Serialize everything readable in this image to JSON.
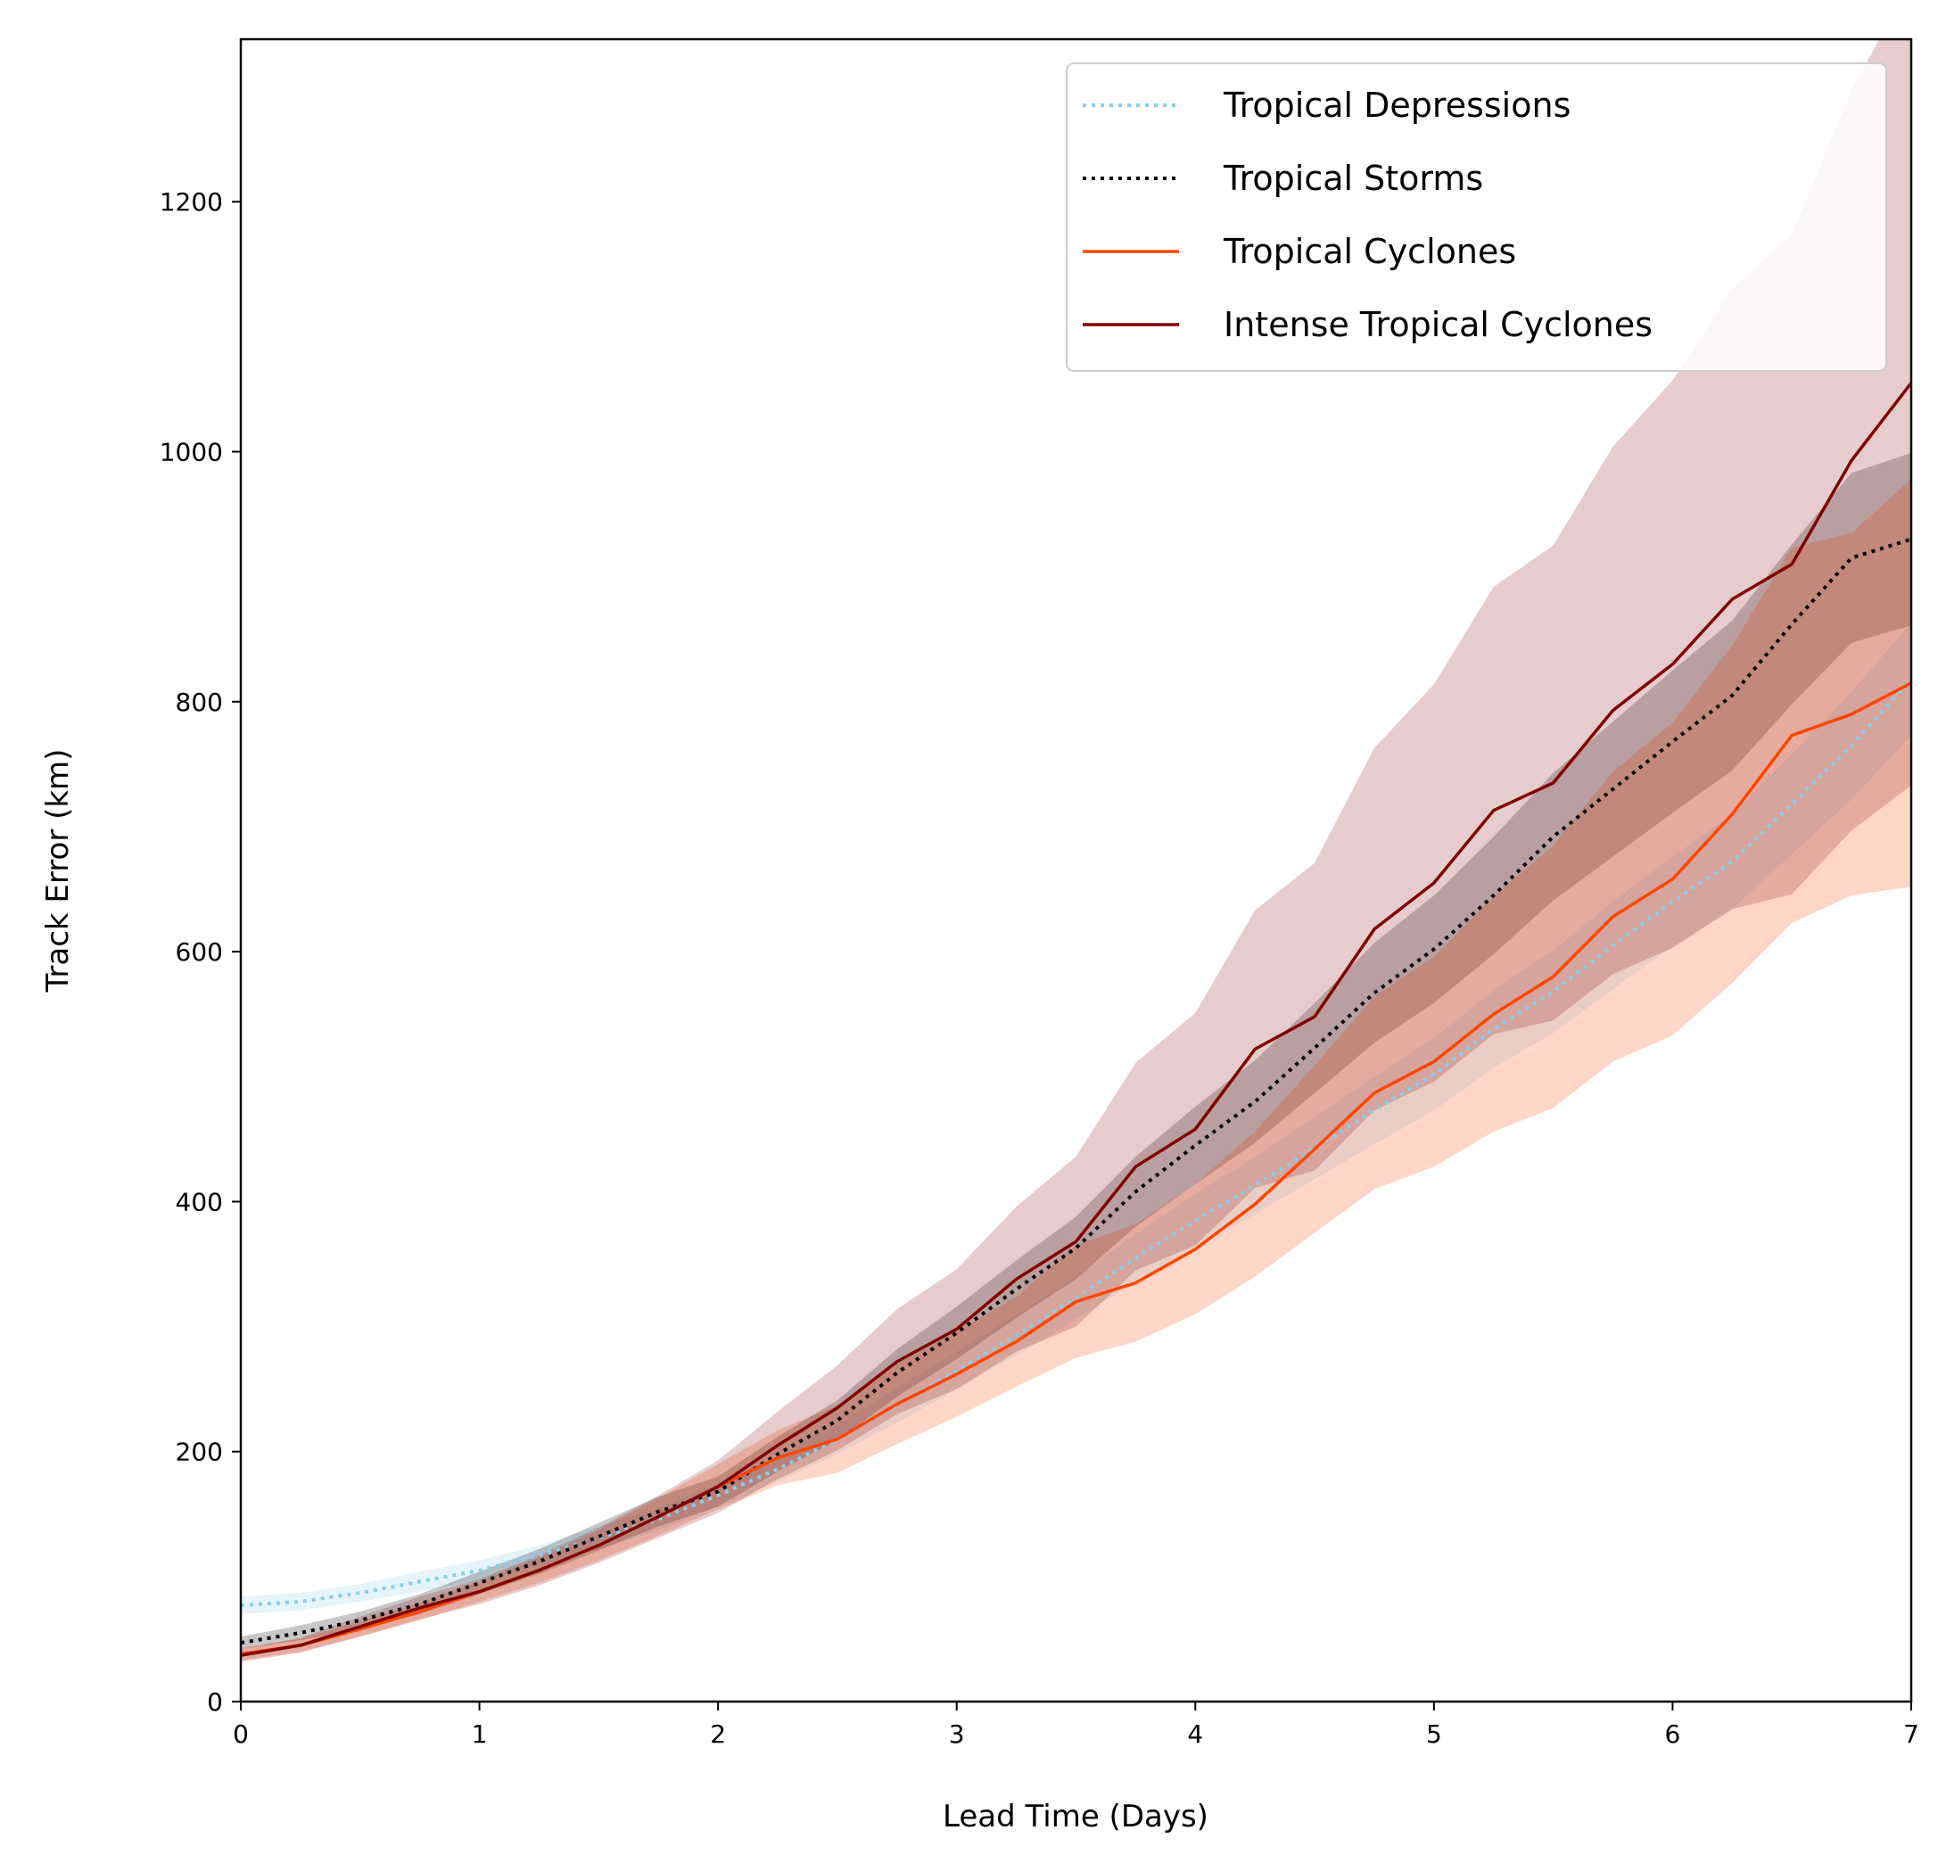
{
  "chart_data": {
    "type": "line",
    "title": "",
    "xlabel": "Lead Time (Days)",
    "ylabel": "Track Error (km)",
    "xlim": [
      0,
      7
    ],
    "ylim": [
      0,
      1330
    ],
    "xticks": [
      0,
      1,
      2,
      3,
      4,
      5,
      6,
      7
    ],
    "yticks": [
      0,
      200,
      400,
      600,
      800,
      1000,
      1200
    ],
    "grid": false,
    "legend_position": "top-right",
    "x": [
      0,
      0.25,
      0.5,
      0.75,
      1,
      1.25,
      1.5,
      1.75,
      2,
      2.25,
      2.5,
      2.75,
      3,
      3.25,
      3.5,
      3.75,
      4,
      4.25,
      4.5,
      4.75,
      5,
      5.25,
      5.5,
      5.75,
      6,
      6.25,
      6.5,
      6.75,
      7
    ],
    "series": [
      {
        "name": "Tropical Depressions",
        "color": "#87ceeb",
        "line_style": "dotted",
        "values": [
          77,
          80,
          87,
          96,
          105,
          117,
          131,
          146,
          165,
          186,
          210,
          237,
          265,
          293,
          323,
          355,
          385,
          413,
          443,
          473,
          502,
          538,
          568,
          605,
          640,
          672,
          718,
          765,
          818
        ],
        "lower": [
          70,
          73,
          80,
          88,
          97,
          109,
          122,
          137,
          156,
          176,
          198,
          223,
          250,
          277,
          306,
          336,
          364,
          390,
          418,
          446,
          473,
          507,
          535,
          570,
          604,
          634,
          678,
          722,
          773
        ],
        "upper": [
          84,
          87,
          94,
          104,
          113,
          125,
          140,
          155,
          174,
          196,
          222,
          251,
          280,
          309,
          340,
          374,
          406,
          436,
          468,
          500,
          531,
          569,
          601,
          640,
          676,
          710,
          758,
          808,
          863
        ]
      },
      {
        "name": "Tropical Storms",
        "color": "#000000",
        "line_style": "dotted",
        "values": [
          47,
          55,
          65,
          78,
          95,
          112,
          132,
          152,
          168,
          198,
          225,
          263,
          295,
          330,
          363,
          408,
          445,
          480,
          523,
          567,
          602,
          645,
          692,
          730,
          768,
          805,
          862,
          915,
          930
        ],
        "lower": [
          42,
          49,
          58,
          70,
          86,
          102,
          121,
          140,
          156,
          184,
          209,
          244,
          274,
          307,
          338,
          380,
          414,
          447,
          487,
          527,
          559,
          598,
          641,
          676,
          711,
          745,
          798,
          847,
          861
        ],
        "upper": [
          52,
          61,
          72,
          86,
          104,
          122,
          143,
          164,
          180,
          212,
          241,
          282,
          316,
          353,
          388,
          436,
          476,
          513,
          559,
          607,
          645,
          692,
          743,
          784,
          825,
          865,
          926,
          983,
          999
        ]
      },
      {
        "name": "Tropical Cyclones",
        "color": "#ff4500",
        "line_style": "solid",
        "values": [
          38,
          45,
          58,
          72,
          88,
          105,
          125,
          148,
          172,
          195,
          210,
          238,
          262,
          288,
          320,
          335,
          362,
          398,
          442,
          487,
          512,
          550,
          580,
          628,
          658,
          710,
          773,
          790,
          815
        ],
        "lower": [
          33,
          40,
          52,
          65,
          80,
          95,
          113,
          133,
          154,
          173,
          183,
          206,
          228,
          252,
          275,
          288,
          310,
          340,
          375,
          410,
          428,
          456,
          475,
          512,
          533,
          575,
          623,
          645,
          652
        ],
        "upper": [
          43,
          50,
          64,
          79,
          96,
          115,
          137,
          163,
          190,
          217,
          237,
          270,
          296,
          324,
          365,
          382,
          414,
          456,
          509,
          564,
          596,
          644,
          685,
          744,
          783,
          845,
          923,
          935,
          978
        ]
      },
      {
        "name": "Intense Tropical Cyclones",
        "color": "#800000",
        "line_style": "solid",
        "values": [
          37,
          45,
          60,
          75,
          88,
          105,
          125,
          148,
          172,
          205,
          235,
          272,
          298,
          338,
          368,
          428,
          458,
          522,
          548,
          618,
          655,
          713,
          735,
          793,
          830,
          882,
          910,
          993,
          1055
        ],
        "lower": [
          32,
          39,
          52,
          66,
          78,
          93,
          111,
          131,
          151,
          178,
          201,
          230,
          250,
          280,
          300,
          345,
          365,
          411,
          425,
          473,
          496,
          534,
          545,
          582,
          603,
          634,
          646,
          697,
          733
        ],
        "upper": [
          42,
          51,
          68,
          84,
          98,
          117,
          139,
          165,
          193,
          232,
          269,
          314,
          346,
          396,
          436,
          511,
          551,
          633,
          671,
          763,
          814,
          892,
          925,
          1004,
          1057,
          1130,
          1174,
          1289,
          1377
        ]
      }
    ]
  }
}
